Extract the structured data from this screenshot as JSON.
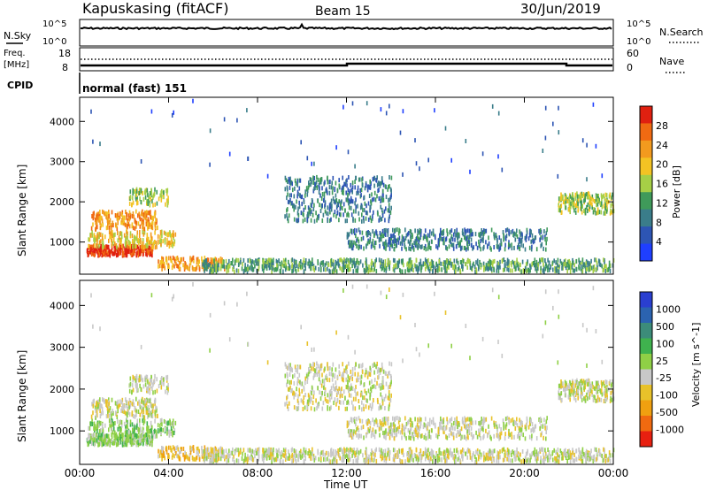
{
  "header": {
    "site": "Kapuskasing (fitACF)",
    "beam": "Beam 15",
    "date": "30/Jun/2019"
  },
  "top_panels": {
    "nsky_label": "N.Sky",
    "nsky_tick_top": "10^5",
    "nsky_tick_bottom": "10^0",
    "nsearch_label": "N.Search",
    "nsearch_tick_top": "10^5",
    "nsearch_tick_bottom": "10^0",
    "freq_label": "Freq.",
    "freq_unit": "[MHz]",
    "freq_tick_top": "18",
    "freq_tick_bottom": "8",
    "nave_label": "Nave",
    "nave_tick_top": "60",
    "nave_tick_bottom": "0",
    "cpid_label": "CPID",
    "cpid_text": "normal (fast) 151"
  },
  "colors": {
    "power_scale": [
      "#1f3fff",
      "#2d55b4",
      "#3a7d8a",
      "#3f9a5a",
      "#a6cf46",
      "#f3c323",
      "#f29a1e",
      "#f06a12",
      "#e02010"
    ],
    "velocity_scale": [
      "#2a3fd0",
      "#2b63b0",
      "#3c8c7a",
      "#3fb24e",
      "#8fd046",
      "#c8c8c8",
      "#e8c22a",
      "#f0a010",
      "#f06a10",
      "#e82010"
    ],
    "line": "#000000"
  },
  "chart_data": [
    {
      "type": "heatmap",
      "name": "power",
      "title": "",
      "xlabel": "",
      "ylabel": "Slant Range [km]",
      "ylim": [
        200,
        4600
      ],
      "yticks": [
        "1000",
        "2000",
        "3000",
        "4000"
      ],
      "colorbar_label": "Power [dB]",
      "colorbar_ticks": [
        "4",
        "8",
        "12",
        "16",
        "20",
        "24",
        "28"
      ]
    },
    {
      "type": "heatmap",
      "name": "velocity",
      "title": "",
      "xlabel": "Time UT",
      "ylabel": "Slant Range [km]",
      "ylim": [
        200,
        4600
      ],
      "yticks": [
        "1000",
        "2000",
        "3000",
        "4000"
      ],
      "xticks": [
        "00:00",
        "04:00",
        "08:00",
        "12:00",
        "16:00",
        "20:00",
        "00:00"
      ],
      "colorbar_label": "Velocity [m s^-1]",
      "colorbar_ticks": [
        "1000",
        "500",
        "100",
        "25",
        "-25",
        "-100",
        "-500",
        "-1000"
      ]
    }
  ]
}
